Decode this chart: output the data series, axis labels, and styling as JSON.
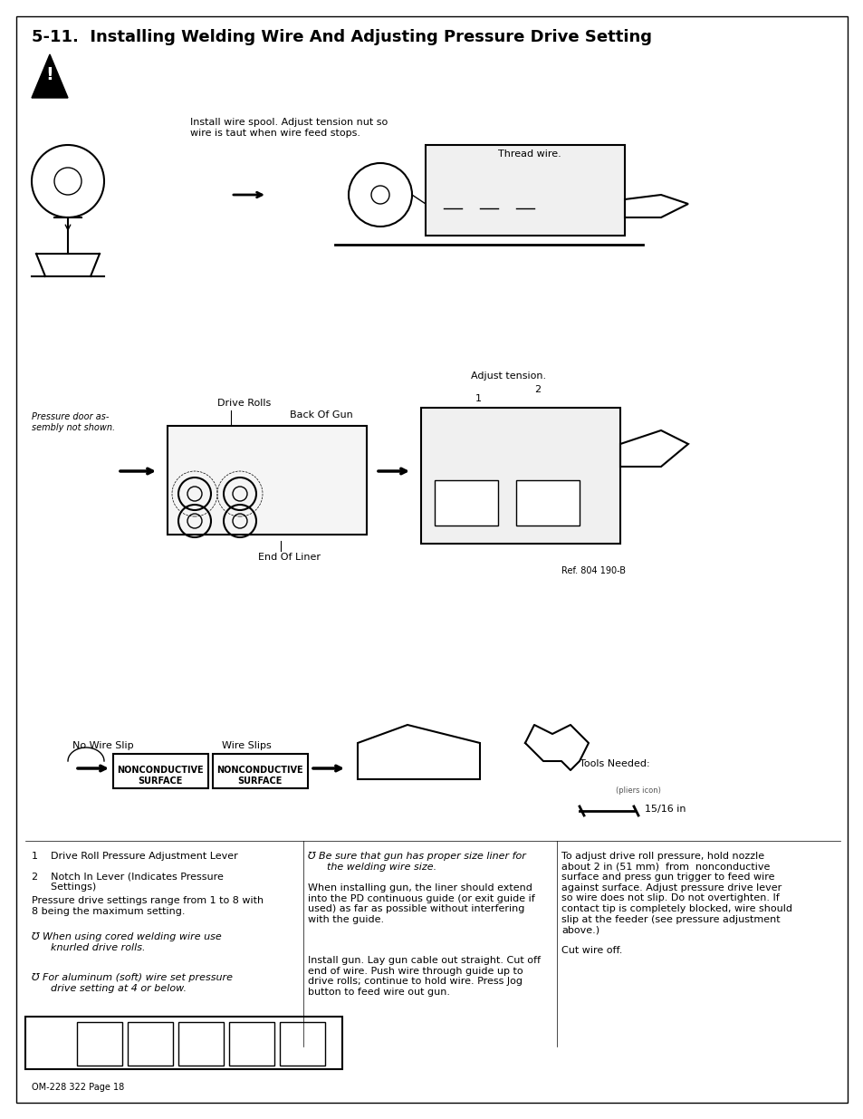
{
  "page_bg": "#ffffff",
  "border_color": "#000000",
  "title": "5-11.  Installing Welding Wire And Adjusting Pressure Drive Setting",
  "footer": "OM-228 322 Page 18",
  "title_fontsize": 13,
  "body_fontsize": 8,
  "small_fontsize": 7,
  "section_labels": {
    "install_wire": "Install wire spool. Adjust tension nut so\nwire is taut when wire feed stops.",
    "thread_wire": "Thread wire.",
    "adjust_tension": "Adjust tension.",
    "drive_rolls": "Drive Rolls",
    "back_of_gun": "Back Of Gun",
    "end_of_liner": "End Of Liner",
    "ref": "Ref. 804 190-B",
    "pressure_door": "Pressure door as-\nsembly not shown.",
    "no_wire_slip": "No Wire Slip",
    "wire_slips": "Wire Slips",
    "nonconductive1": "NONCONDUCTIVE\nSURFACE",
    "nonconductive2": "NONCONDUCTIVE\nSURFACE",
    "tools_needed": "Tools Needed:",
    "fraction": "15/16 in"
  },
  "numbered_items": [
    "1    Drive Roll Pressure Adjustment Lever",
    "2    Notch In Lever (Indicates Pressure\n      Settings)"
  ],
  "para1_title": "Pressure drive settings range from 1 to 8 with\n8 being the maximum setting.",
  "para2_italic": "℧ When using cored welding wire use\n      knurled drive rolls.",
  "para3_italic": "℧ For aluminum (soft) wire set pressure\n      drive setting at 4 or below.",
  "col2_note": "℧ Be sure that gun has proper size liner for\n      the welding wire size.",
  "col2_para1": "When installing gun, the liner should extend\ninto the PD continuous guide (or exit guide if\nused) as far as possible without interfering\nwith the guide.",
  "col2_para2": "Install gun. Lay gun cable out straight. Cut off\nend of wire. Push wire through guide up to\ndrive rolls; continue to hold wire. Press Jog\nbutton to feed wire out gun.",
  "col3_para": "To adjust drive roll pressure, hold nozzle\nabout 2 in (51 mm)  from  nonconductive\nsurface and press gun trigger to feed wire\nagainst surface. Adjust pressure drive lever\nso wire does not slip. Do not overtighten. If\ncontact tip is completely blocked, wire should\nslip at the feeder (see pressure adjustment\nabove.)\n\nCut wire off."
}
